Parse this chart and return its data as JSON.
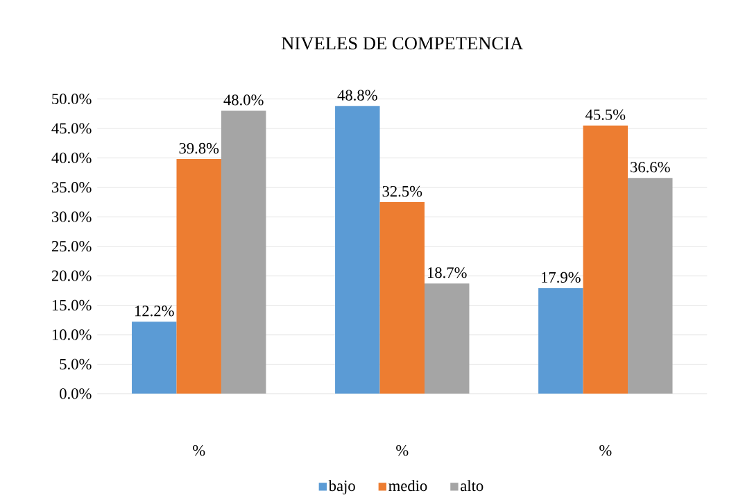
{
  "chart_data": {
    "type": "bar",
    "title": "NIVELES DE COMPETENCIA",
    "categories": [
      "%",
      "%",
      "%"
    ],
    "series": [
      {
        "name": "bajo",
        "color": "#5b9bd5",
        "values": [
          12.2,
          48.8,
          17.9
        ],
        "value_labels": [
          "12.2%",
          "48.8%",
          "17.9%"
        ]
      },
      {
        "name": "medio",
        "color": "#ed7d31",
        "values": [
          39.8,
          32.5,
          45.5
        ],
        "value_labels": [
          "39.8%",
          "32.5%",
          "45.5%"
        ]
      },
      {
        "name": "alto",
        "color": "#a5a5a5",
        "values": [
          48.0,
          18.7,
          36.6
        ],
        "value_labels": [
          "48.0%",
          "18.7%",
          "36.6%"
        ]
      }
    ],
    "ylim": [
      0,
      50
    ],
    "yticks": [
      {
        "value": 0,
        "label": "0.0%"
      },
      {
        "value": 5,
        "label": "5.0%"
      },
      {
        "value": 10,
        "label": "10.0%"
      },
      {
        "value": 15,
        "label": "15.0%"
      },
      {
        "value": 20,
        "label": "20.0%"
      },
      {
        "value": 25,
        "label": "25.0%"
      },
      {
        "value": 30,
        "label": "30.0%"
      },
      {
        "value": 35,
        "label": "35.0%"
      },
      {
        "value": 40,
        "label": "40.0%"
      },
      {
        "value": 45,
        "label": "45.0%"
      },
      {
        "value": 50,
        "label": "50.0%"
      }
    ],
    "grid": "y",
    "legend": "bottom"
  }
}
